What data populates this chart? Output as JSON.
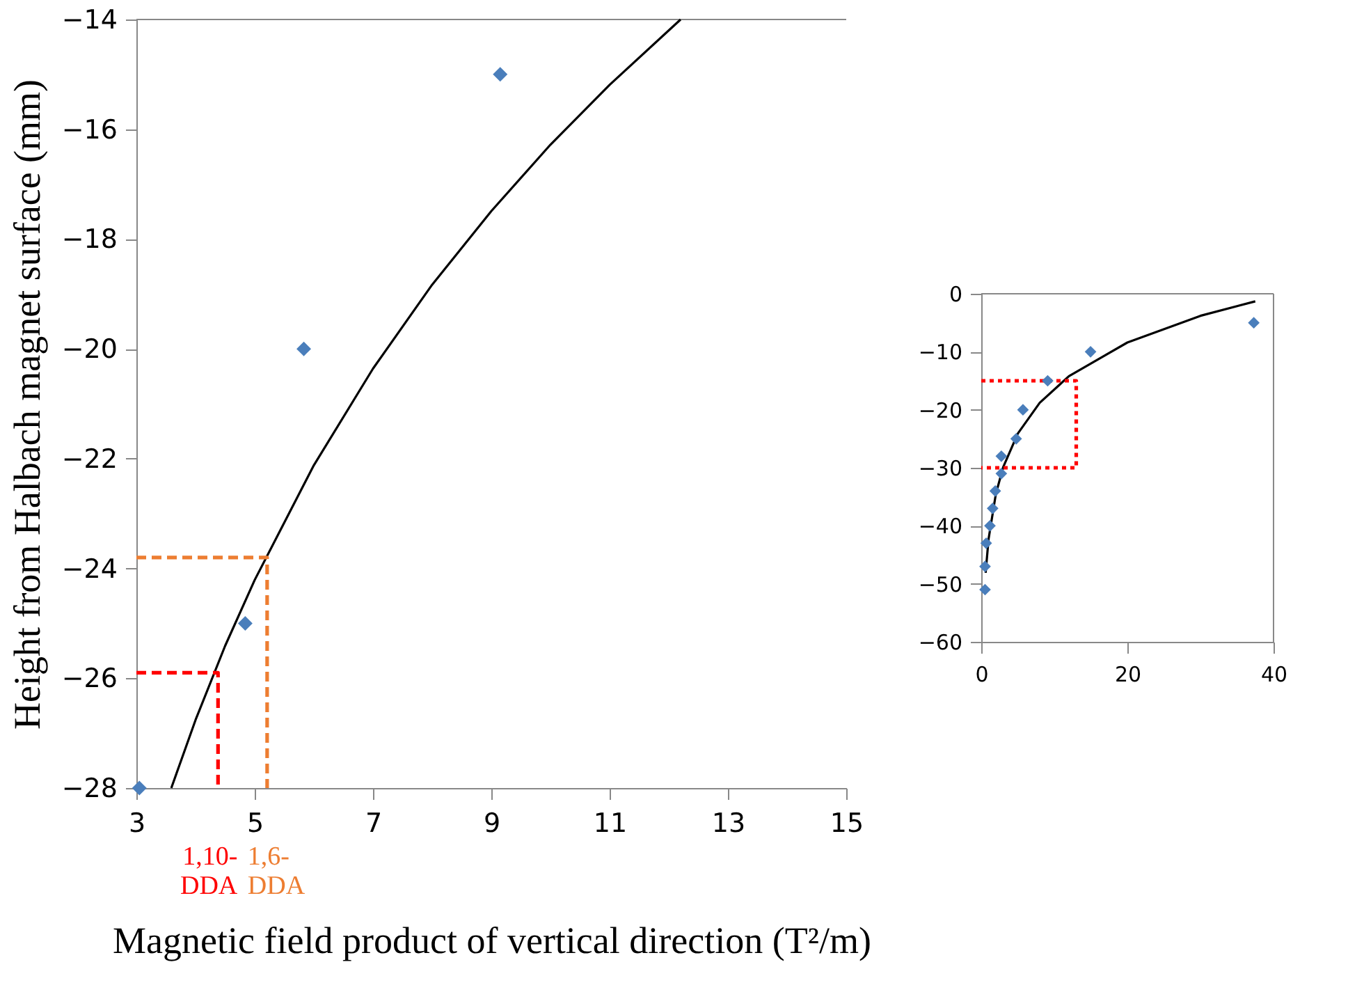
{
  "chart_data": [
    {
      "type": "scatter",
      "xlabel": "Magnetic field product of vertical direction  (T²/m)",
      "ylabel": "Height from Halbach magnet surface (mm)",
      "xlim": [
        3,
        15
      ],
      "xticks": [
        3,
        5,
        7,
        9,
        11,
        13,
        15
      ],
      "ylim": [
        -28,
        -14
      ],
      "yticks": [
        -28,
        -26,
        -24,
        -22,
        -20,
        -18,
        -16,
        -14
      ],
      "grid": false,
      "series": [
        {
          "type": "scatter",
          "marker": "diamond",
          "color": "#4a7ebb",
          "x": [
            3.05,
            4.84,
            5.83,
            9.15
          ],
          "values": [
            -28,
            -25,
            -20,
            -15
          ]
        },
        {
          "type": "line",
          "line_style": "solid",
          "color": "#000000",
          "x": [
            3.59,
            4,
            4.5,
            5,
            6,
            7,
            8,
            9,
            10,
            11,
            12.2
          ],
          "values": [
            -28,
            -26.76,
            -25.41,
            -24.21,
            -22.12,
            -20.36,
            -18.83,
            -17.49,
            -16.28,
            -15.19,
            -14
          ]
        },
        {
          "type": "line",
          "line_style": "dashed",
          "color": "#ff0000",
          "x": [
            3,
            4.38,
            4.38
          ],
          "values": [
            -25.9,
            -25.9,
            -28
          ]
        },
        {
          "type": "line",
          "line_style": "dashed",
          "color": "#ed7d31",
          "x": [
            3,
            5.21,
            5.21
          ],
          "values": [
            -23.8,
            -23.8,
            -28
          ]
        }
      ],
      "annotations": [
        {
          "text": "1,10-DDA",
          "x": 4.38,
          "y": -28
        },
        {
          "text": "1,6-DDA",
          "x": 5.21,
          "y": -28
        }
      ]
    },
    {
      "type": "scatter",
      "xlim": [
        0,
        40
      ],
      "xticks": [
        0,
        20,
        40
      ],
      "ylim": [
        -60,
        0
      ],
      "yticks": [
        -60,
        -50,
        -40,
        -30,
        -20,
        -10,
        0
      ],
      "grid": false,
      "series": [
        {
          "type": "scatter",
          "marker": "diamond",
          "color": "#4a7ebb",
          "x": [
            0.52,
            0.52,
            0.68,
            1.19,
            1.56,
            1.92,
            2.75,
            2.75,
            4.78,
            5.71,
            9.09,
            14.96,
            37.3
          ],
          "values": [
            -51,
            -47,
            -43,
            -40,
            -37,
            -34,
            -31,
            -28,
            -25,
            -20,
            -15,
            -10,
            -5
          ]
        },
        {
          "type": "line",
          "line_style": "solid",
          "color": "#000000",
          "x": [
            0.6,
            1,
            2,
            3,
            5,
            8,
            12,
            20,
            30,
            37.5
          ],
          "values": [
            -48.1,
            -42.3,
            -34.5,
            -29.9,
            -24.1,
            -18.8,
            -14.2,
            -8.4,
            -3.8,
            -1.3
          ]
        },
        {
          "type": "line",
          "line_style": "dotted",
          "color": "#ff0000",
          "x": [
            0,
            13,
            13,
            0
          ],
          "values": [
            -15,
            -15,
            -30,
            -30
          ]
        }
      ]
    }
  ]
}
